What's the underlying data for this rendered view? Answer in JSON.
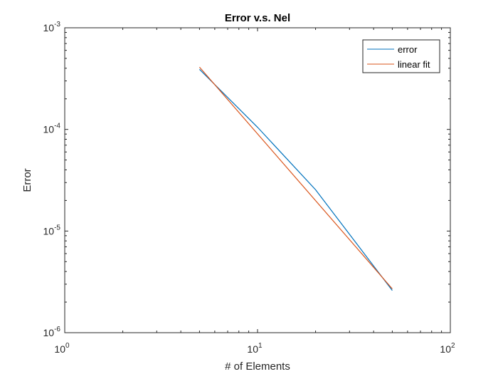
{
  "chart_data": {
    "type": "line",
    "title": "Error v.s. Nel",
    "xlabel": "# of Elements",
    "ylabel": "Error",
    "xscale": "log",
    "yscale": "log",
    "xlim": [
      1,
      100
    ],
    "ylim": [
      1e-06,
      0.001
    ],
    "x_ticks": [
      {
        "value": 1,
        "base": "10",
        "exp": "0"
      },
      {
        "value": 10,
        "base": "10",
        "exp": "1"
      },
      {
        "value": 100,
        "base": "10",
        "exp": "2"
      }
    ],
    "y_ticks": [
      {
        "value": 1e-06,
        "base": "10",
        "exp": "-6"
      },
      {
        "value": 1e-05,
        "base": "10",
        "exp": "-5"
      },
      {
        "value": 0.0001,
        "base": "10",
        "exp": "-4"
      },
      {
        "value": 0.001,
        "base": "10",
        "exp": "-3"
      }
    ],
    "grid": false,
    "legend_position": "top-right",
    "series": [
      {
        "name": "error",
        "color": "#0072BD",
        "x": [
          5,
          10,
          20,
          50
        ],
        "y": [
          0.00039,
          0.000105,
          2.55e-05,
          2.6e-06
        ]
      },
      {
        "name": "linear fit",
        "color": "#D95319",
        "x": [
          5,
          50
        ],
        "y": [
          0.00041,
          2.7e-06
        ]
      }
    ]
  }
}
